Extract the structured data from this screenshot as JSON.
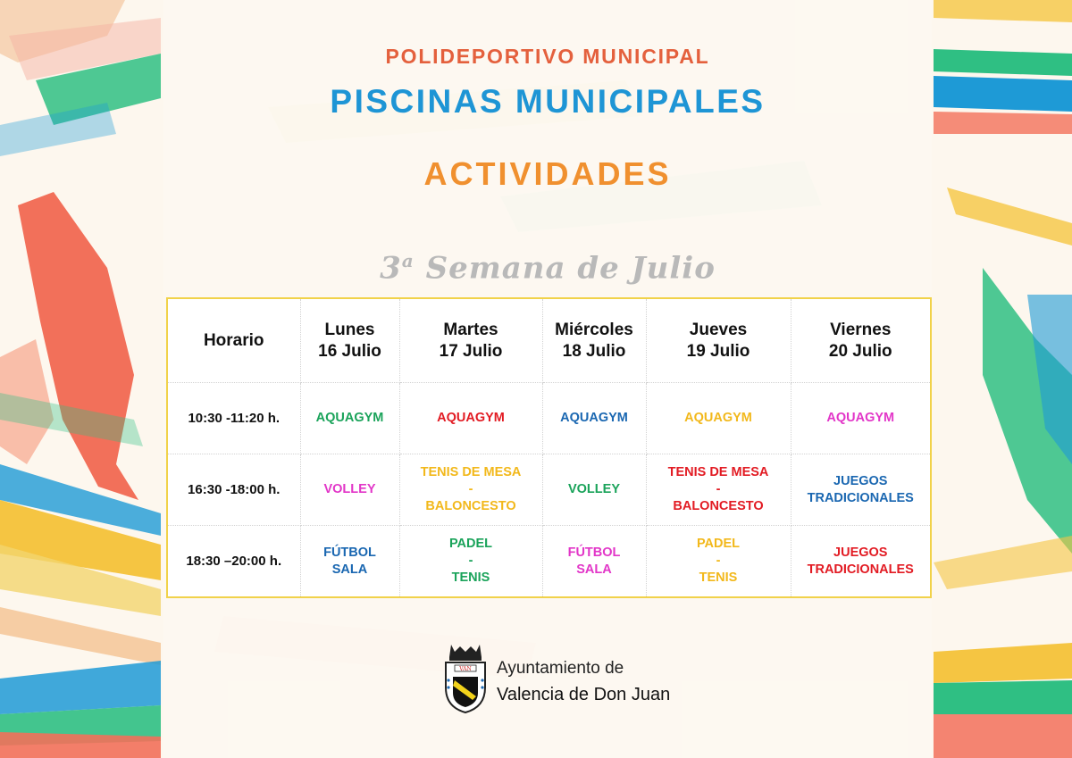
{
  "header": {
    "kicker": "POLIDEPORTIVO MUNICIPAL",
    "title": "PISCINAS MUNICIPALES",
    "subtitle": "ACTIVIDADES"
  },
  "week": {
    "number": "3",
    "ordinal": "a",
    "text": "Semana de Julio"
  },
  "colors": {
    "green": "#1aa35a",
    "red": "#e21b23",
    "blue": "#1a67b1",
    "yellow": "#f2b81b",
    "magenta": "#e236c8",
    "border": "#f1d24a"
  },
  "schedule": {
    "headers": [
      {
        "lines": [
          "Horario"
        ]
      },
      {
        "lines": [
          "Lunes",
          "16 Julio"
        ]
      },
      {
        "lines": [
          "Martes",
          "17 Julio"
        ]
      },
      {
        "lines": [
          "Miércoles",
          "18 Julio"
        ]
      },
      {
        "lines": [
          "Jueves",
          "19 Julio"
        ]
      },
      {
        "lines": [
          "Viernes",
          "20 Julio"
        ]
      }
    ],
    "rows": [
      {
        "time": "10:30 -11:20 h.",
        "cells": [
          {
            "lines": [
              "AQUAGYM"
            ],
            "color": "#1aa35a"
          },
          {
            "lines": [
              "AQUAGYM"
            ],
            "color": "#e21b23"
          },
          {
            "lines": [
              "AQUAGYM"
            ],
            "color": "#1a67b1"
          },
          {
            "lines": [
              "AQUAGYM"
            ],
            "color": "#f2b81b"
          },
          {
            "lines": [
              "AQUAGYM"
            ],
            "color": "#e236c8"
          }
        ]
      },
      {
        "time": "16:30 -18:00 h.",
        "cells": [
          {
            "lines": [
              "VOLLEY"
            ],
            "color": "#e236c8"
          },
          {
            "lines": [
              "TENIS DE MESA",
              "-",
              "BALONCESTO"
            ],
            "color": "#f2b81b"
          },
          {
            "lines": [
              "VOLLEY"
            ],
            "color": "#1aa35a"
          },
          {
            "lines": [
              "TENIS DE MESA",
              "-",
              "BALONCESTO"
            ],
            "color": "#e21b23"
          },
          {
            "lines": [
              "JUEGOS",
              "TRADICIONALES"
            ],
            "color": "#1a67b1"
          }
        ]
      },
      {
        "time": "18:30 –20:00 h.",
        "cells": [
          {
            "lines": [
              "FÚTBOL",
              "SALA"
            ],
            "color": "#1a67b1"
          },
          {
            "lines": [
              "PADEL",
              "-",
              "TENIS"
            ],
            "color": "#1aa35a"
          },
          {
            "lines": [
              "FÚTBOL",
              "SALA"
            ],
            "color": "#e236c8"
          },
          {
            "lines": [
              "PADEL",
              "-",
              "TENIS"
            ],
            "color": "#f2b81b"
          },
          {
            "lines": [
              "JUEGOS",
              "TRADICIONALES"
            ],
            "color": "#e21b23"
          }
        ]
      }
    ]
  },
  "footer": {
    "crest_icon": "coat-of-arms-icon",
    "crest_banner": "VAN",
    "line1": "Ayuntamiento de",
    "line2": "Valencia de Don Juan"
  }
}
